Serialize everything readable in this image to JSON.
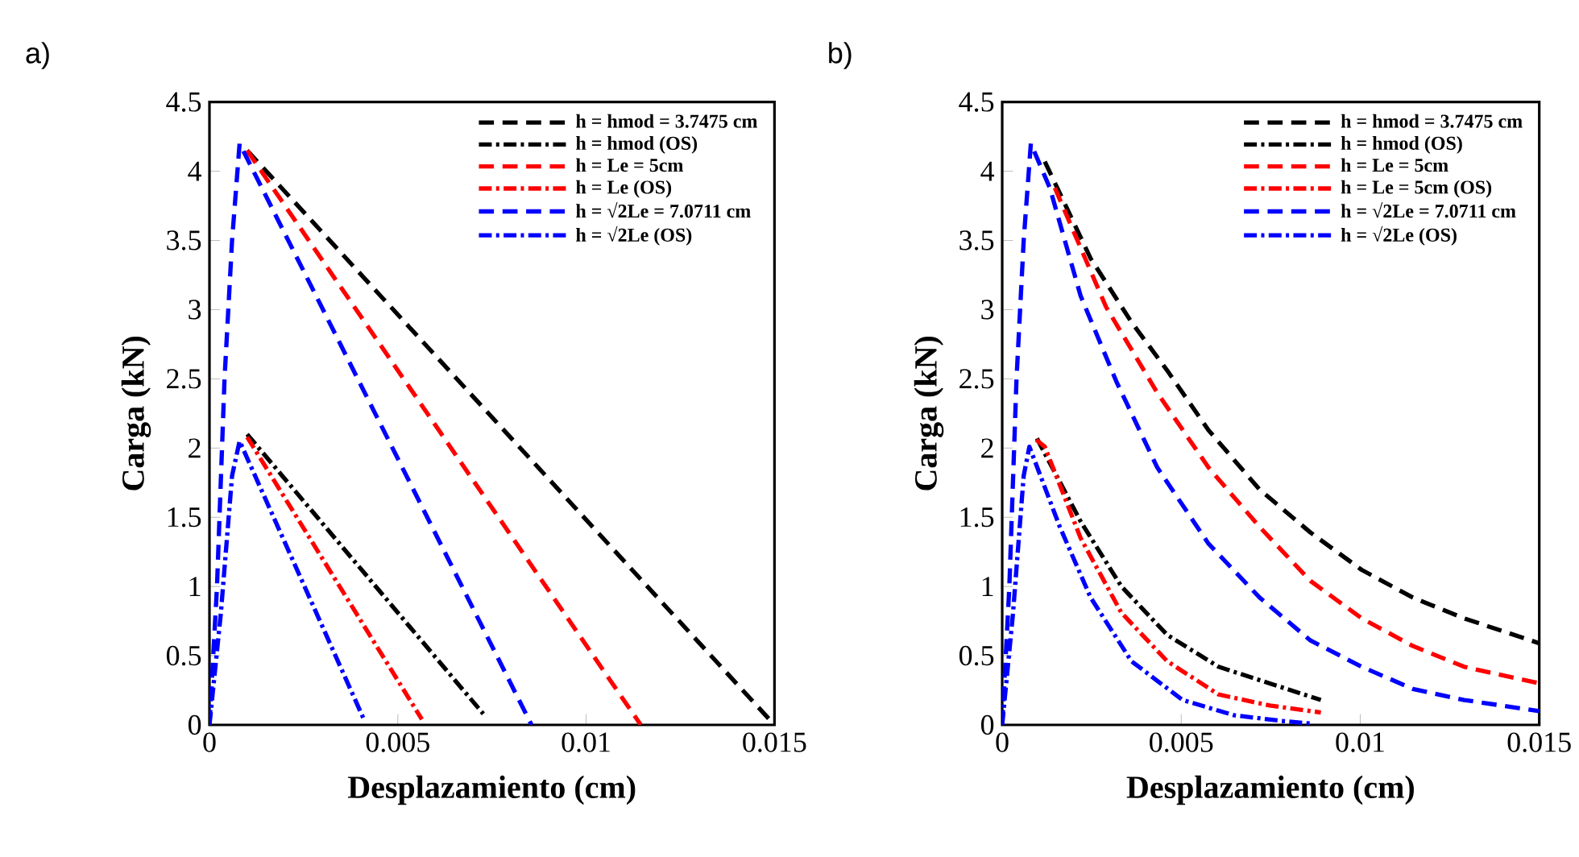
{
  "chart_data": [
    {
      "type": "line",
      "title": "a)",
      "xlabel": "Desplazamiento (cm)",
      "ylabel": "Carga (kN)",
      "xlim": [
        0,
        0.015
      ],
      "ylim": [
        0,
        4.5
      ],
      "xticks": [
        0,
        0.005,
        0.01,
        0.015
      ],
      "yticks": [
        0,
        0.5,
        1,
        1.5,
        2,
        2.5,
        3,
        3.5,
        4,
        4.5
      ],
      "legend": "top right",
      "series": [
        {
          "name": "h = hmod = 3.7475 cm",
          "color": "#000000",
          "line_style": "dashed",
          "x": [
            0.001,
            0.015
          ],
          "values": [
            4.15,
            0
          ]
        },
        {
          "name": "h = hmod (OS)",
          "color": "#000000",
          "line_style": "dashdot",
          "x": [
            0.001,
            0.00727
          ],
          "values": [
            2.1,
            0.08
          ]
        },
        {
          "name": "h = Le = 5cm",
          "color": "#ff0000",
          "line_style": "dashed",
          "x": [
            0.001,
            0.01145
          ],
          "values": [
            4.15,
            0
          ]
        },
        {
          "name": "h = Le (OS)",
          "color": "#ff0000",
          "line_style": "dashdot",
          "x": [
            0.001,
            0.00564
          ],
          "values": [
            2.08,
            0.04
          ]
        },
        {
          "name": "h = √2Le = 7.0711 cm",
          "color": "#0000ff",
          "line_style": "dashed",
          "x": [
            0,
            0.0002,
            0.0004,
            0.0006,
            0.0008,
            0.00855
          ],
          "values": [
            0,
            1,
            2.5,
            3.5,
            4.2,
            0
          ]
        },
        {
          "name": "h = √2Le (OS)",
          "color": "#0000ff",
          "line_style": "dashdot",
          "x": [
            0,
            0.0003,
            0.0006,
            0.0008,
            0.0041
          ],
          "values": [
            0,
            0.8,
            1.8,
            2.05,
            0.04
          ]
        }
      ]
    },
    {
      "type": "line",
      "title": "b)",
      "xlabel": "Desplazamiento (cm)",
      "ylabel": "Carga (kN)",
      "xlim": [
        0,
        0.015
      ],
      "ylim": [
        0,
        4.5
      ],
      "xticks": [
        0,
        0.005,
        0.01,
        0.015
      ],
      "yticks": [
        0,
        0.5,
        1,
        1.5,
        2,
        2.5,
        3,
        3.5,
        4,
        4.5
      ],
      "legend": "top right",
      "series": [
        {
          "name": "h = hmod = 3.7475 cm",
          "color": "#000000",
          "line_style": "dashed",
          "x": [
            0.00119,
            0.00247,
            0.00361,
            0.00461,
            0.00576,
            0.00719,
            0.00861,
            0.01004,
            0.01147,
            0.0129,
            0.015
          ],
          "values": [
            4.07,
            3.37,
            2.91,
            2.56,
            2.13,
            1.7,
            1.39,
            1.12,
            0.92,
            0.77,
            0.59
          ]
        },
        {
          "name": "h = hmod (OS)",
          "color": "#000000",
          "line_style": "dashdot",
          "x": [
            0.00097,
            0.00219,
            0.00333,
            0.00461,
            0.00604,
            0.00747,
            0.0089
          ],
          "values": [
            2.07,
            1.47,
            1.0,
            0.65,
            0.42,
            0.3,
            0.18
          ]
        },
        {
          "name": "h = Le = 5cm",
          "color": "#ff0000",
          "line_style": "dashed",
          "x": [
            0.00147,
            0.0029,
            0.00433,
            0.00576,
            0.00719,
            0.00861,
            0.01004,
            0.01147,
            0.0129,
            0.015
          ],
          "values": [
            3.88,
            3.02,
            2.4,
            1.86,
            1.43,
            1.04,
            0.77,
            0.57,
            0.42,
            0.3
          ]
        },
        {
          "name": "h = Le = 5cm (OS)",
          "color": "#ff0000",
          "line_style": "dashdot",
          "x": [
            0.00095,
            0.00119,
            0.00219,
            0.00333,
            0.00461,
            0.00604,
            0.00747,
            0.0089
          ],
          "values": [
            2.06,
            2.01,
            1.35,
            0.81,
            0.46,
            0.22,
            0.14,
            0.09
          ]
        },
        {
          "name": "h = √2Le = 7.0711 cm",
          "color": "#0000ff",
          "line_style": "dashed",
          "x": [
            0,
            0.0002,
            0.0004,
            0.0006,
            0.0008,
            0.00133,
            0.00219,
            0.00319,
            0.00433,
            0.00576,
            0.00719,
            0.00861,
            0.01004,
            0.01147,
            0.0129,
            0.015
          ],
          "values": [
            0,
            1,
            2.5,
            3.5,
            4.2,
            3.88,
            3.1,
            2.48,
            1.86,
            1.31,
            0.92,
            0.61,
            0.42,
            0.26,
            0.18,
            0.1
          ]
        },
        {
          "name": "h = √2Le (OS)",
          "color": "#0000ff",
          "line_style": "dashdot",
          "x": [
            0,
            0.0003,
            0.0006,
            0.00076,
            0.00161,
            0.00247,
            0.00361,
            0.00504,
            0.00647,
            0.00776,
            0.0086
          ],
          "values": [
            0,
            0.8,
            1.8,
            2.01,
            1.43,
            0.92,
            0.46,
            0.18,
            0.07,
            0.03,
            0.01
          ]
        }
      ]
    }
  ]
}
